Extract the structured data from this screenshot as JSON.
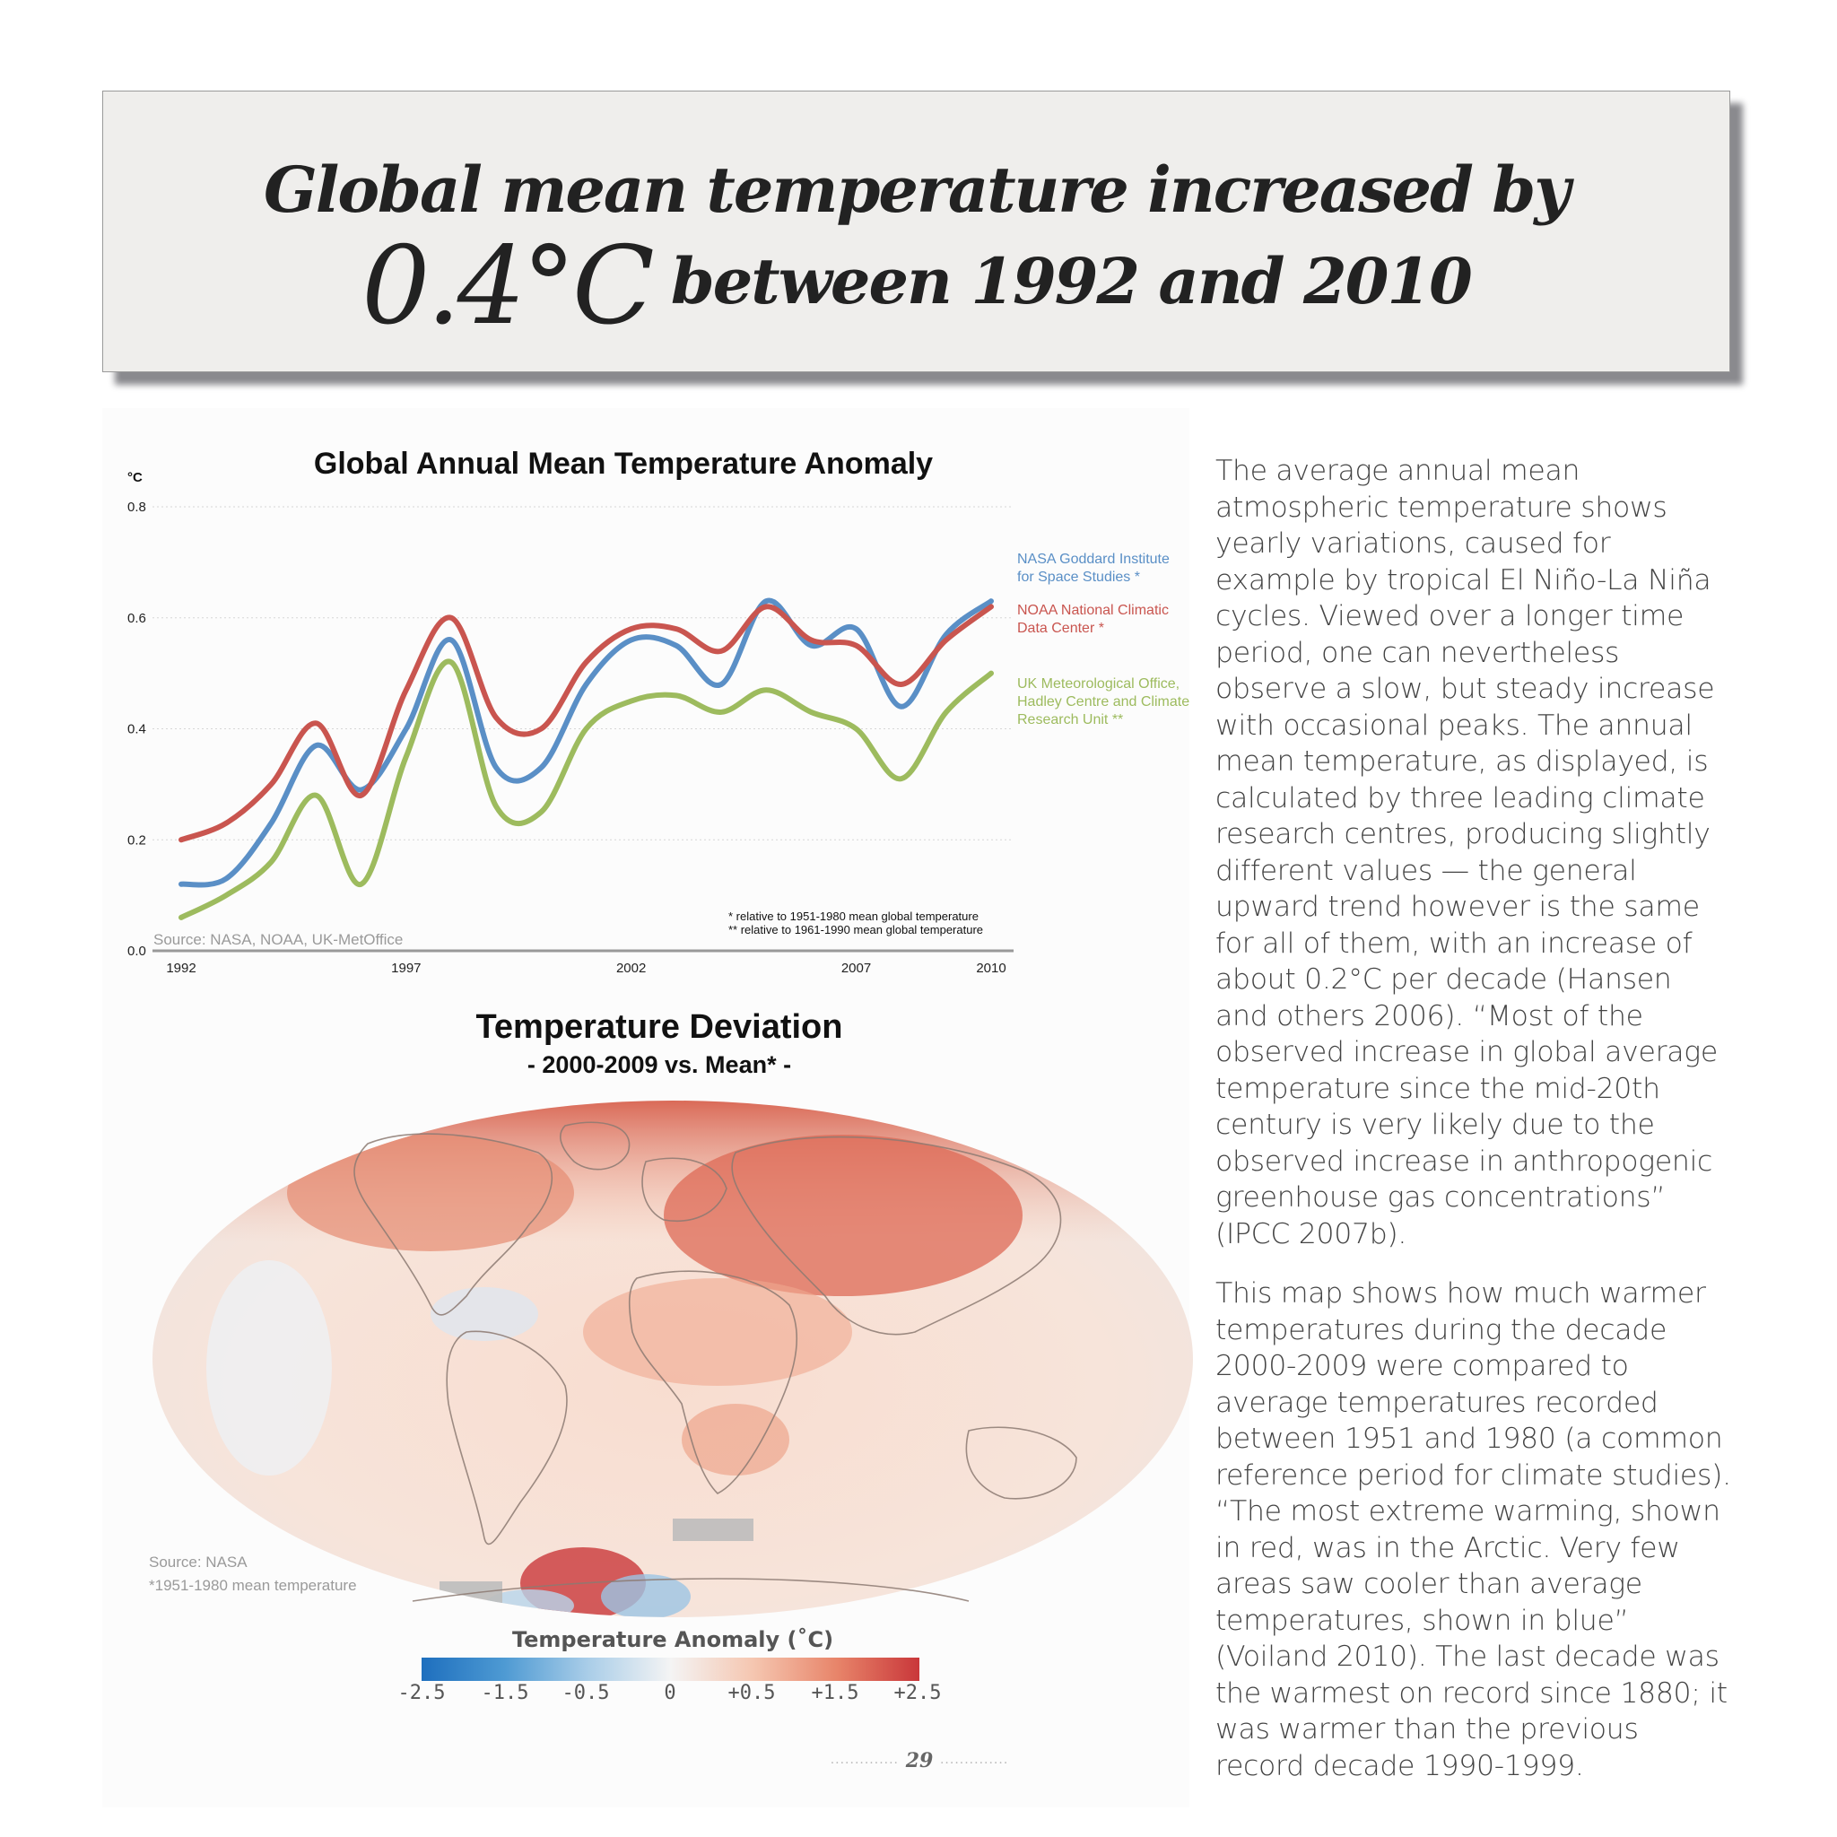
{
  "banner": {
    "line1": "Global mean temperature increased by",
    "big_value": "0.4°C",
    "line2_rest": "between 1992 and 2010"
  },
  "chart_data": {
    "type": "line",
    "title": "Global Annual Mean Temperature Anomaly",
    "ylabel": "°C",
    "xlabel": "",
    "ylim": [
      0.0,
      0.8
    ],
    "yticks": [
      "0.8",
      "0.6",
      "0.4",
      "0.2",
      "0.0"
    ],
    "xticks": [
      "1992",
      "1997",
      "2002",
      "2007",
      "2010"
    ],
    "xlim": [
      1992,
      2010
    ],
    "grid": true,
    "legend_position": "right",
    "x": [
      1992,
      1993,
      1994,
      1995,
      1996,
      1997,
      1998,
      1999,
      2000,
      2001,
      2002,
      2003,
      2004,
      2005,
      2006,
      2007,
      2008,
      2009,
      2010
    ],
    "series": [
      {
        "name": "NASA Goddard Institute for Space Studies *",
        "color": "#5a8fc6",
        "values": [
          0.12,
          0.13,
          0.23,
          0.37,
          0.29,
          0.4,
          0.56,
          0.33,
          0.33,
          0.48,
          0.56,
          0.55,
          0.48,
          0.63,
          0.55,
          0.58,
          0.44,
          0.57,
          0.63
        ]
      },
      {
        "name": "NOAA National Climatic Data Center *",
        "color": "#c9554f",
        "values": [
          0.2,
          0.23,
          0.3,
          0.41,
          0.28,
          0.47,
          0.6,
          0.42,
          0.4,
          0.52,
          0.58,
          0.58,
          0.54,
          0.62,
          0.56,
          0.55,
          0.48,
          0.56,
          0.62
        ]
      },
      {
        "name": "UK Meteorological Office, Hadley Centre and Climate Research Unit **",
        "color": "#9dbb5e",
        "values": [
          0.06,
          0.1,
          0.16,
          0.28,
          0.12,
          0.35,
          0.52,
          0.26,
          0.25,
          0.4,
          0.45,
          0.46,
          0.43,
          0.47,
          0.43,
          0.4,
          0.31,
          0.43,
          0.5
        ]
      }
    ],
    "notes": [
      "* relative to 1951-1980 mean global temperature",
      "** relative to 1961-1990 mean global temperature"
    ],
    "source": "Source: NASA, NOAA, UK-MetOffice"
  },
  "legend": {
    "nasa_1": "NASA Goddard Institute",
    "nasa_2": "for Space Studies *",
    "noaa_1": "NOAA National Climatic",
    "noaa_2": "Data Center *",
    "uk_1": "UK Meteorological Office,",
    "uk_2": "Hadley Centre and Climate",
    "uk_3": "Research Unit **"
  },
  "map": {
    "title": "Temperature Deviation",
    "subtitle": "- 2000-2009 vs. Mean* -",
    "source": "Source: NASA",
    "footnote": "*1951-1980 mean temperature",
    "scale_title": "Temperature Anomaly (˚C)",
    "scale_labels": [
      "-2.5",
      "-1.5",
      "-0.5",
      "0",
      "+0.5",
      "+1.5",
      "+2.5"
    ],
    "colors": {
      "cold": "#1e6fbe",
      "neutral": "#f4f4f4",
      "warm": "#c9373a"
    }
  },
  "body": {
    "p1": "The average annual mean atmospheric temperature shows yearly variations, caused for example by tropical El Niño-La Niña cycles. Viewed over a longer time period, one can nevertheless observe a slow, but steady increase with occasional peaks. The annual mean temperature, as displayed, is calculated by three leading climate research centres, producing slightly different values — the general upward trend however is the same for all of them, with an increase of about 0.2°C per decade (Hansen and others 2006). “Most of the observed increase in global average temperature since the mid-20th century is very likely due to the observed increase in anthropogenic greenhouse gas concentrations” (IPCC 2007b).",
    "p2": "This map shows how much warmer temperatures during the decade 2000-2009 were compared to average temperatures recorded between 1951 and 1980 (a common reference period for climate studies). “The most extreme warming, shown in red, was in the Arctic. Very few areas saw cooler than average temperatures, shown in blue” (Voiland 2010). The last decade was the warmest on record since 1880; it was warmer than the previous record decade 1990-1999."
  },
  "page_number": "29"
}
